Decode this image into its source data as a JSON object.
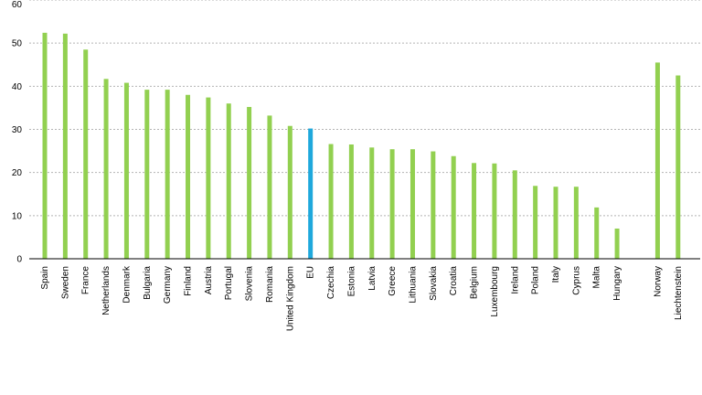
{
  "chart_data": {
    "type": "bar",
    "title": "",
    "xlabel": "",
    "ylabel": "",
    "ylim": [
      0,
      60
    ],
    "yticks": [
      0,
      10,
      20,
      30,
      40,
      50,
      60
    ],
    "grid": true,
    "colors": {
      "default": "#92d050",
      "highlight": "#1fa8dc",
      "grid": "#b4b4b4"
    },
    "highlight_category": "EU",
    "categories": [
      "Spain",
      "Sweden",
      "France",
      "Netherlands",
      "Denmark",
      "Bulgaria",
      "Germany",
      "Finland",
      "Austria",
      "Portugal",
      "Slovenia",
      "Romania",
      "United Kingdom",
      "EU",
      "Czechia",
      "Estonia",
      "Latvia",
      "Greece",
      "Lithuania",
      "Slovakia",
      "Croatia",
      "Belgium",
      "Luxembourg",
      "Ireland",
      "Poland",
      "Italy",
      "Cyprus",
      "Malta",
      "Hungary",
      "Norway",
      "Liechtenstein"
    ],
    "values": [
      52.4,
      52.2,
      48.5,
      41.7,
      40.8,
      39.2,
      39.2,
      38.0,
      37.4,
      36.0,
      35.2,
      33.2,
      30.8,
      30.2,
      26.6,
      26.5,
      25.8,
      25.4,
      25.4,
      24.9,
      23.8,
      22.2,
      22.1,
      20.5,
      16.9,
      16.7,
      16.7,
      11.9,
      7.0,
      45.5,
      42.5
    ]
  }
}
